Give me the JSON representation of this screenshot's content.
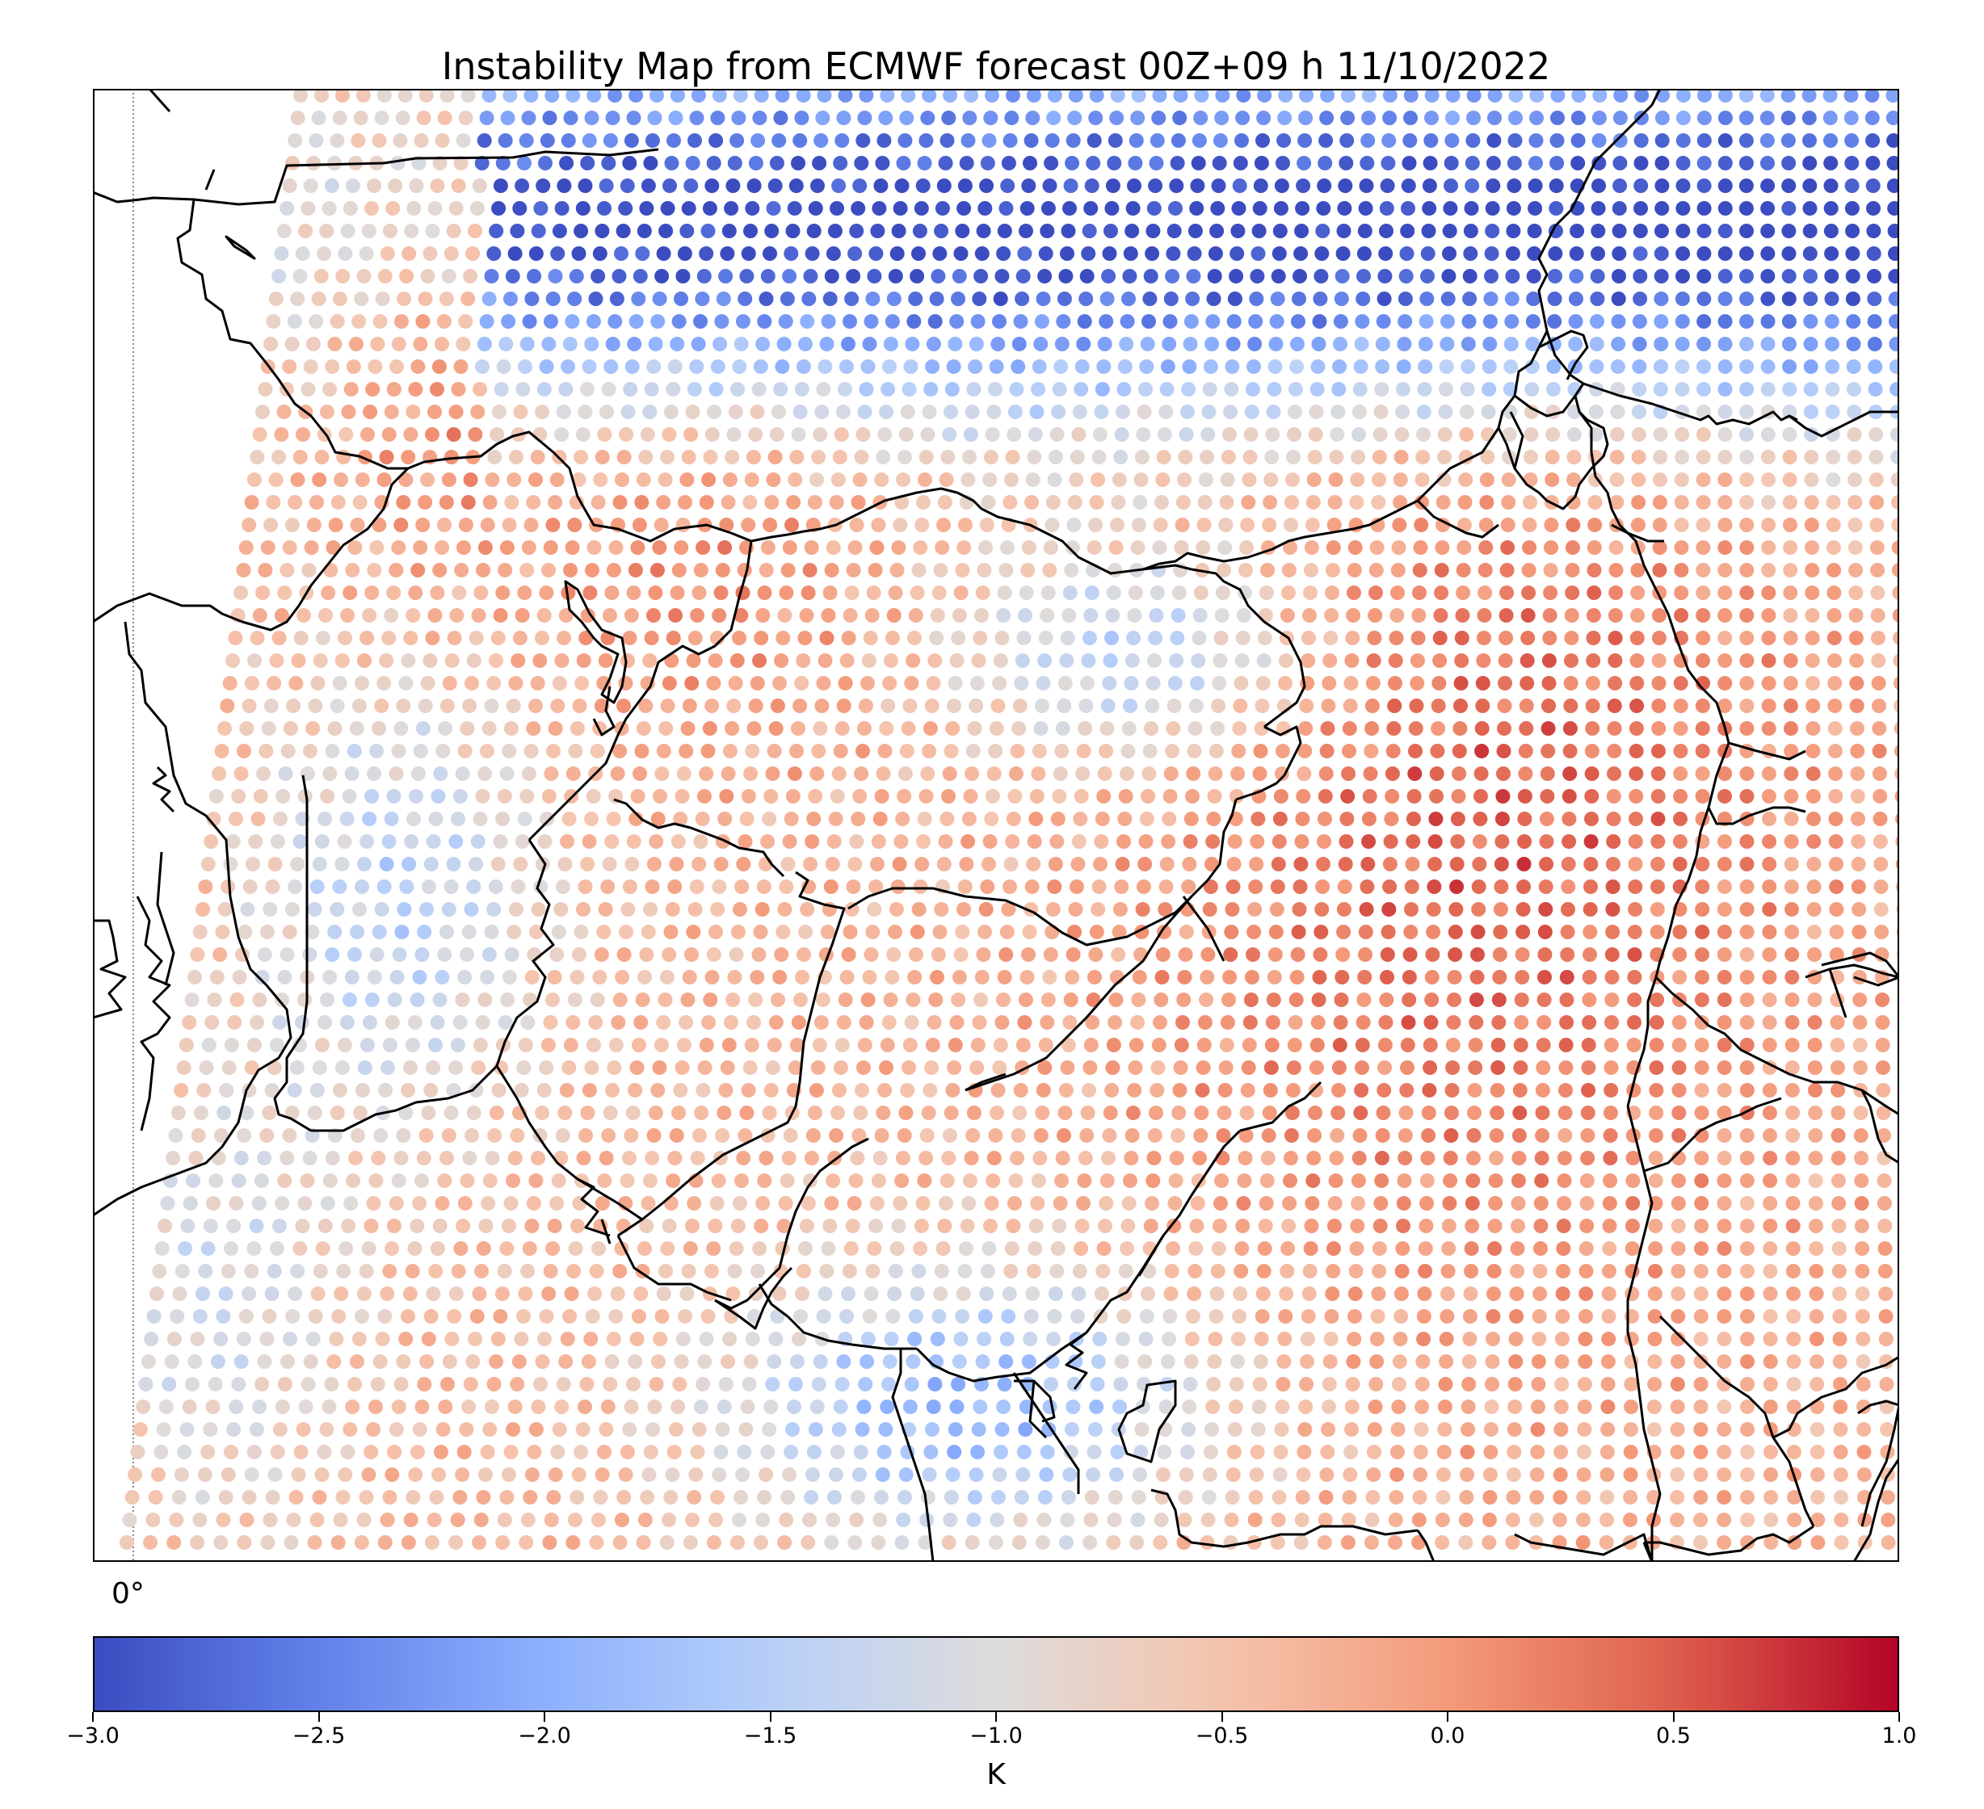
{
  "title": "Instability Map from ECMWF forecast 00Z+09 h 11/10/2022",
  "map": {
    "longitude_label": "0°",
    "meridian_style": "dotted",
    "colormap": "coolwarm",
    "colors": {
      "low": "#3b4cc0",
      "mid": "#dddcdc",
      "high": "#b40426",
      "coastline": "#000000"
    }
  },
  "colorbar": {
    "min": -3.0,
    "max": 1.0,
    "ticks": [
      "−3.0",
      "−2.5",
      "−2.0",
      "−1.5",
      "−1.0",
      "−0.5",
      "0.0",
      "0.5",
      "1.0"
    ],
    "tick_values": [
      -3.0,
      -2.5,
      -2.0,
      -1.5,
      -1.0,
      -0.5,
      0.0,
      0.5,
      1.0
    ],
    "units": "K",
    "orientation": "horizontal"
  }
}
